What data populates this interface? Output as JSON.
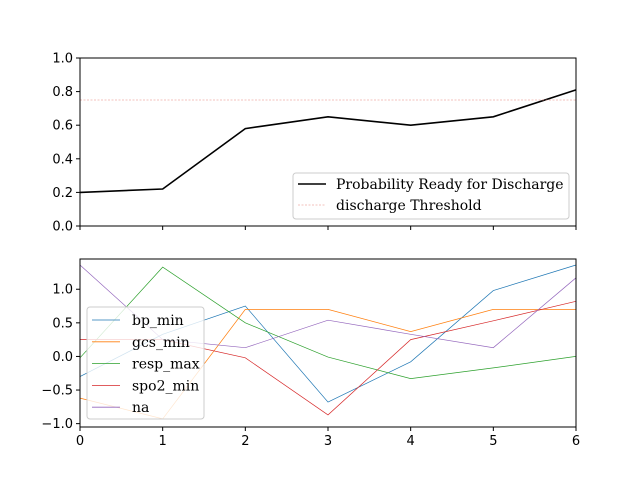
{
  "chart_data": [
    {
      "type": "line",
      "x": [
        0,
        1,
        2,
        3,
        4,
        5,
        6
      ],
      "ylim": [
        0.0,
        1.0
      ],
      "xlim": [
        0,
        6
      ],
      "yticks": [
        "0.0",
        "0.2",
        "0.4",
        "0.6",
        "0.8",
        "1.0"
      ],
      "show_xtick_labels": false,
      "legend_position": "lower-right",
      "series": [
        {
          "name": "Probability Ready for Discharge",
          "values": [
            0.2,
            0.22,
            0.58,
            0.65,
            0.6,
            0.65,
            0.81
          ],
          "color": "#000000",
          "style": "solid"
        },
        {
          "name": "discharge Threshold",
          "values": [
            0.75,
            0.75,
            0.75,
            0.75,
            0.75,
            0.75,
            0.75
          ],
          "color": "#e8837a",
          "style": "dashed"
        }
      ]
    },
    {
      "type": "line",
      "x": [
        0,
        1,
        2,
        3,
        4,
        5,
        6
      ],
      "ylim": [
        -1.05,
        1.45
      ],
      "xlim": [
        0,
        6
      ],
      "yticks": [
        "−1.0",
        "−0.5",
        "0.0",
        "0.5",
        "1.0"
      ],
      "ytick_values": [
        -1.0,
        -0.5,
        0.0,
        0.5,
        1.0
      ],
      "xticks": [
        "0",
        "1",
        "2",
        "3",
        "4",
        "5",
        "6"
      ],
      "legend_position": "left",
      "series": [
        {
          "name": "bp_min",
          "values": [
            -0.3,
            0.33,
            0.75,
            -0.68,
            -0.08,
            0.98,
            1.36
          ],
          "color": "#1f77b4"
        },
        {
          "name": "gcs_min",
          "values": [
            -0.62,
            -0.93,
            0.7,
            0.7,
            0.37,
            0.7,
            0.7
          ],
          "color": "#ff7f0e"
        },
        {
          "name": "resp_max",
          "values": [
            -0.02,
            1.33,
            0.5,
            -0.01,
            -0.33,
            -0.17,
            0.0
          ],
          "color": "#2ca02c"
        },
        {
          "name": "spo2_min",
          "values": [
            0.25,
            0.25,
            -0.02,
            -0.87,
            0.25,
            0.53,
            0.82
          ],
          "color": "#d62728"
        },
        {
          "name": "na",
          "values": [
            1.36,
            0.25,
            0.13,
            0.54,
            0.33,
            0.13,
            1.17
          ],
          "color": "#9467bd"
        }
      ]
    }
  ]
}
